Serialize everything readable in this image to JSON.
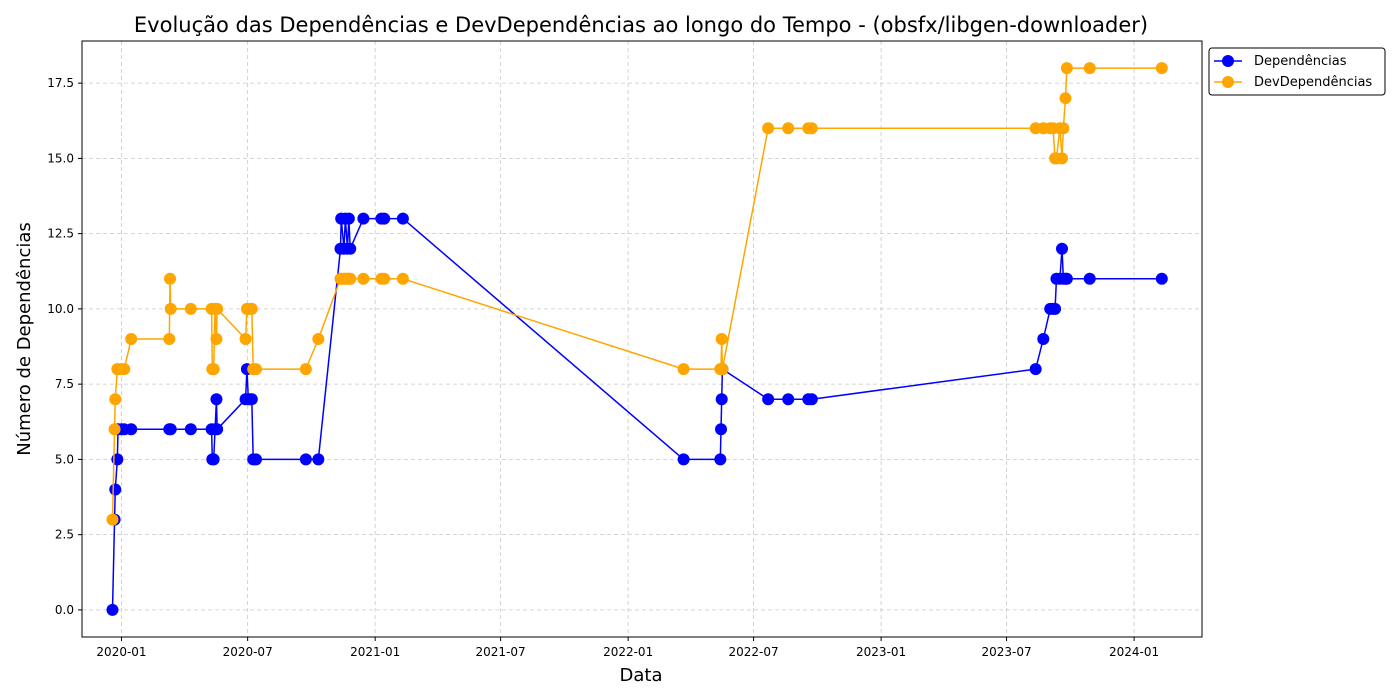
{
  "chart_data": {
    "type": "line",
    "title": "Evolução das Dependências e DevDependências ao longo do Tempo - (obsfx/libgen-downloader)",
    "xlabel": "Data",
    "ylabel": "Número de Dependências",
    "xlim": [
      "2019-11-05",
      "2024-04-08"
    ],
    "ylim": [
      -0.9,
      18.9
    ],
    "x_ticks": [
      "2020-01",
      "2020-07",
      "2021-01",
      "2021-07",
      "2022-01",
      "2022-07",
      "2023-01",
      "2023-07",
      "2024-01"
    ],
    "y_ticks": [
      "0.0",
      "2.5",
      "5.0",
      "7.5",
      "10.0",
      "12.5",
      "15.0",
      "17.5"
    ],
    "grid": true,
    "legend_position": "outside-top-right",
    "series": [
      {
        "name": "Dependências",
        "color": "#0000ff",
        "points": [
          [
            "2019-12-19",
            0
          ],
          [
            "2019-12-22",
            3
          ],
          [
            "2019-12-23",
            4
          ],
          [
            "2019-12-26",
            5
          ],
          [
            "2019-12-27",
            6
          ],
          [
            "2020-01-01",
            6
          ],
          [
            "2020-01-05",
            6
          ],
          [
            "2020-01-15",
            6
          ],
          [
            "2020-03-10",
            6
          ],
          [
            "2020-03-12",
            6
          ],
          [
            "2020-04-10",
            6
          ],
          [
            "2020-05-10",
            6
          ],
          [
            "2020-05-11",
            5
          ],
          [
            "2020-05-13",
            5
          ],
          [
            "2020-05-15",
            6
          ],
          [
            "2020-05-17",
            7
          ],
          [
            "2020-05-18",
            6
          ],
          [
            "2020-06-28",
            7
          ],
          [
            "2020-06-30",
            8
          ],
          [
            "2020-07-02",
            7
          ],
          [
            "2020-07-05",
            7
          ],
          [
            "2020-07-07",
            7
          ],
          [
            "2020-07-09",
            5
          ],
          [
            "2020-07-13",
            5
          ],
          [
            "2020-09-23",
            5
          ],
          [
            "2020-10-11",
            5
          ],
          [
            "2020-11-12",
            12
          ],
          [
            "2020-11-13",
            13
          ],
          [
            "2020-11-17",
            12
          ],
          [
            "2020-11-19",
            13
          ],
          [
            "2020-11-22",
            12
          ],
          [
            "2020-11-24",
            13
          ],
          [
            "2020-11-26",
            12
          ],
          [
            "2020-12-15",
            13
          ],
          [
            "2021-01-10",
            13
          ],
          [
            "2021-01-14",
            13
          ],
          [
            "2021-02-10",
            13
          ],
          [
            "2022-03-22",
            5
          ],
          [
            "2022-05-14",
            5
          ],
          [
            "2022-05-15",
            6
          ],
          [
            "2022-05-16",
            7
          ],
          [
            "2022-05-17",
            8
          ],
          [
            "2022-07-22",
            7
          ],
          [
            "2022-08-20",
            7
          ],
          [
            "2022-09-18",
            7
          ],
          [
            "2022-09-23",
            7
          ],
          [
            "2023-08-12",
            8
          ],
          [
            "2023-08-23",
            9
          ],
          [
            "2023-09-02",
            10
          ],
          [
            "2023-09-06",
            10
          ],
          [
            "2023-09-09",
            10
          ],
          [
            "2023-09-11",
            11
          ],
          [
            "2023-09-16",
            11
          ],
          [
            "2023-09-19",
            12
          ],
          [
            "2023-09-21",
            11
          ],
          [
            "2023-09-24",
            11
          ],
          [
            "2023-09-26",
            11
          ],
          [
            "2023-10-29",
            11
          ],
          [
            "2024-02-10",
            11
          ]
        ]
      },
      {
        "name": "DevDependências",
        "color": "#ffa500",
        "points": [
          [
            "2019-12-19",
            3
          ],
          [
            "2019-12-22",
            6
          ],
          [
            "2019-12-23",
            7
          ],
          [
            "2019-12-26",
            8
          ],
          [
            "2019-12-27",
            8
          ],
          [
            "2020-01-01",
            8
          ],
          [
            "2020-01-05",
            8
          ],
          [
            "2020-01-15",
            9
          ],
          [
            "2020-03-10",
            9
          ],
          [
            "2020-03-11",
            11
          ],
          [
            "2020-03-12",
            10
          ],
          [
            "2020-04-10",
            10
          ],
          [
            "2020-05-10",
            10
          ],
          [
            "2020-05-11",
            8
          ],
          [
            "2020-05-13",
            8
          ],
          [
            "2020-05-15",
            10
          ],
          [
            "2020-05-17",
            9
          ],
          [
            "2020-05-18",
            10
          ],
          [
            "2020-06-28",
            9
          ],
          [
            "2020-06-30",
            10
          ],
          [
            "2020-07-02",
            10
          ],
          [
            "2020-07-05",
            10
          ],
          [
            "2020-07-07",
            10
          ],
          [
            "2020-07-09",
            8
          ],
          [
            "2020-07-13",
            8
          ],
          [
            "2020-09-23",
            8
          ],
          [
            "2020-10-11",
            9
          ],
          [
            "2020-11-12",
            11
          ],
          [
            "2020-11-13",
            11
          ],
          [
            "2020-11-17",
            11
          ],
          [
            "2020-11-19",
            11
          ],
          [
            "2020-11-22",
            11
          ],
          [
            "2020-11-24",
            11
          ],
          [
            "2020-11-26",
            11
          ],
          [
            "2020-12-15",
            11
          ],
          [
            "2021-01-10",
            11
          ],
          [
            "2021-01-14",
            11
          ],
          [
            "2021-02-10",
            11
          ],
          [
            "2022-03-22",
            8
          ],
          [
            "2022-05-14",
            8
          ],
          [
            "2022-05-15",
            8
          ],
          [
            "2022-05-16",
            9
          ],
          [
            "2022-05-17",
            8
          ],
          [
            "2022-07-22",
            16
          ],
          [
            "2022-08-20",
            16
          ],
          [
            "2022-09-18",
            16
          ],
          [
            "2022-09-23",
            16
          ],
          [
            "2023-08-12",
            16
          ],
          [
            "2023-08-23",
            16
          ],
          [
            "2023-09-02",
            16
          ],
          [
            "2023-09-06",
            16
          ],
          [
            "2023-09-09",
            15
          ],
          [
            "2023-09-11",
            15
          ],
          [
            "2023-09-16",
            16
          ],
          [
            "2023-09-19",
            15
          ],
          [
            "2023-09-21",
            16
          ],
          [
            "2023-09-24",
            17
          ],
          [
            "2023-09-26",
            18
          ],
          [
            "2023-10-29",
            18
          ],
          [
            "2024-02-10",
            18
          ]
        ]
      }
    ]
  }
}
